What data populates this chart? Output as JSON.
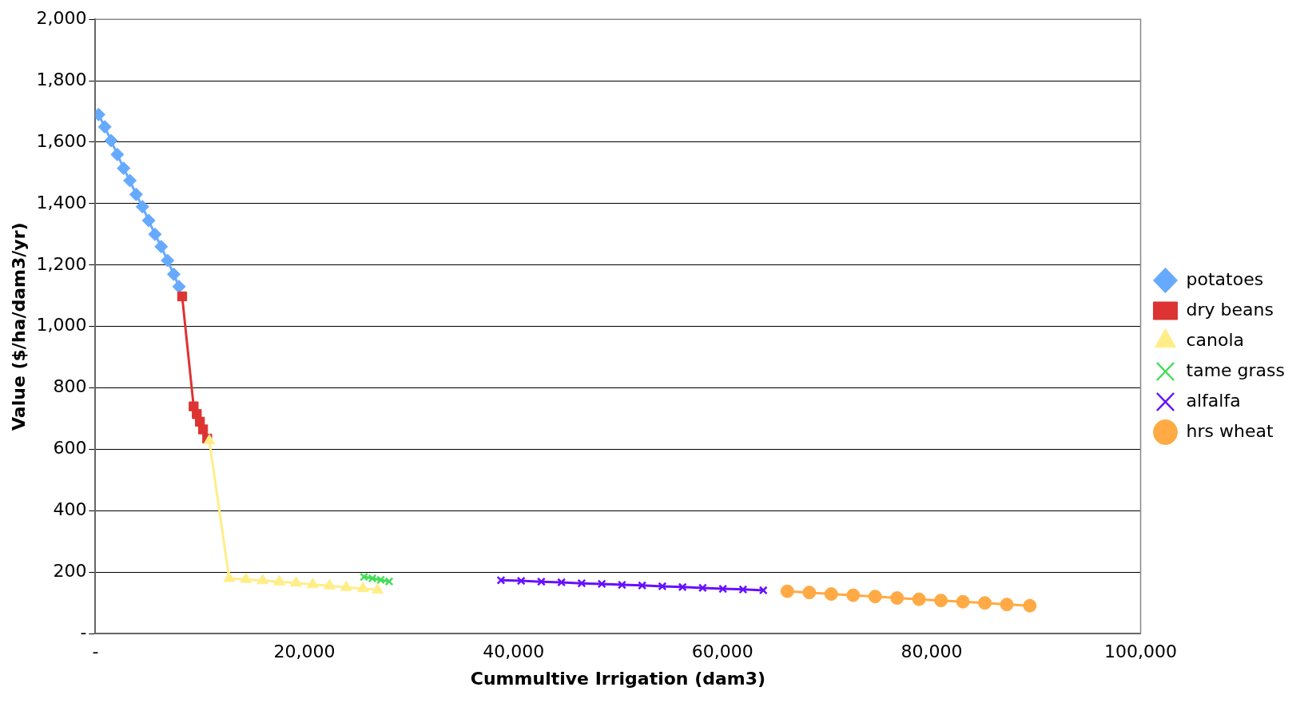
{
  "chart_data": {
    "type": "line",
    "xlabel": "Cummultive Irrigation (dam3)",
    "ylabel": "Value ($/ha/dam3/yr)",
    "xlim": [
      0,
      100000
    ],
    "ylim": [
      0,
      2000
    ],
    "xticks": [
      {
        "value": 0,
        "label": "-"
      },
      {
        "value": 20000,
        "label": "20,000"
      },
      {
        "value": 40000,
        "label": "40,000"
      },
      {
        "value": 60000,
        "label": "60,000"
      },
      {
        "value": 80000,
        "label": "80,000"
      },
      {
        "value": 100000,
        "label": "100,000"
      }
    ],
    "yticks": [
      {
        "value": 0,
        "label": "-"
      },
      {
        "value": 200,
        "label": "200"
      },
      {
        "value": 400,
        "label": "400"
      },
      {
        "value": 600,
        "label": "600"
      },
      {
        "value": 800,
        "label": "800"
      },
      {
        "value": 1000,
        "label": "1,000"
      },
      {
        "value": 1200,
        "label": "1,200"
      },
      {
        "value": 1400,
        "label": "1,400"
      },
      {
        "value": 1600,
        "label": "1,600"
      },
      {
        "value": 1800,
        "label": "1,800"
      },
      {
        "value": 2000,
        "label": "2,000"
      }
    ],
    "grid": "y",
    "legend": "right",
    "series": [
      {
        "name": "potatoes",
        "color": "#66aaff",
        "marker": "diamond",
        "x": [
          300,
          900,
          1500,
          2100,
          2700,
          3300,
          3900,
          4500,
          5100,
          5700,
          6300,
          6900,
          7500,
          8000
        ],
        "values": [
          1690,
          1650,
          1605,
          1560,
          1515,
          1475,
          1430,
          1390,
          1345,
          1300,
          1260,
          1215,
          1170,
          1130
        ]
      },
      {
        "name": "dry beans",
        "color": "#dd3333",
        "marker": "square",
        "x": [
          8300,
          9400,
          9700,
          10000,
          10300,
          10700
        ],
        "values": [
          1098,
          740,
          715,
          690,
          665,
          635
        ]
      },
      {
        "name": "canola",
        "color": "#ffee88",
        "marker": "triangle",
        "x": [
          10900,
          12800,
          14400,
          16000,
          17600,
          19200,
          20800,
          22400,
          24000,
          25600,
          27000
        ],
        "values": [
          628,
          180,
          177,
          173,
          169,
          165,
          160,
          156,
          151,
          147,
          142
        ]
      },
      {
        "name": "tame grass",
        "color": "#44dd55",
        "marker": "cross",
        "x": [
          25700,
          26500,
          27300,
          28100
        ],
        "values": [
          185,
          180,
          175,
          170
        ]
      },
      {
        "name": "alfalfa",
        "color": "#6611ff",
        "marker": "cross",
        "x": [
          38800,
          40730,
          42660,
          44590,
          46520,
          48450,
          50380,
          52310,
          54240,
          56170,
          58100,
          60030,
          61960,
          63900
        ],
        "values": [
          174,
          172,
          169,
          167,
          164,
          162,
          159,
          157,
          154,
          152,
          149,
          146,
          144,
          141
        ]
      },
      {
        "name": "hrs wheat",
        "color": "#ffaa44",
        "marker": "circle",
        "x": [
          66200,
          68300,
          70400,
          72500,
          74600,
          76700,
          78800,
          80900,
          83000,
          85100,
          87200,
          89400
        ],
        "values": [
          138,
          134,
          129,
          125,
          121,
          116,
          112,
          108,
          104,
          100,
          95,
          91
        ]
      }
    ]
  }
}
